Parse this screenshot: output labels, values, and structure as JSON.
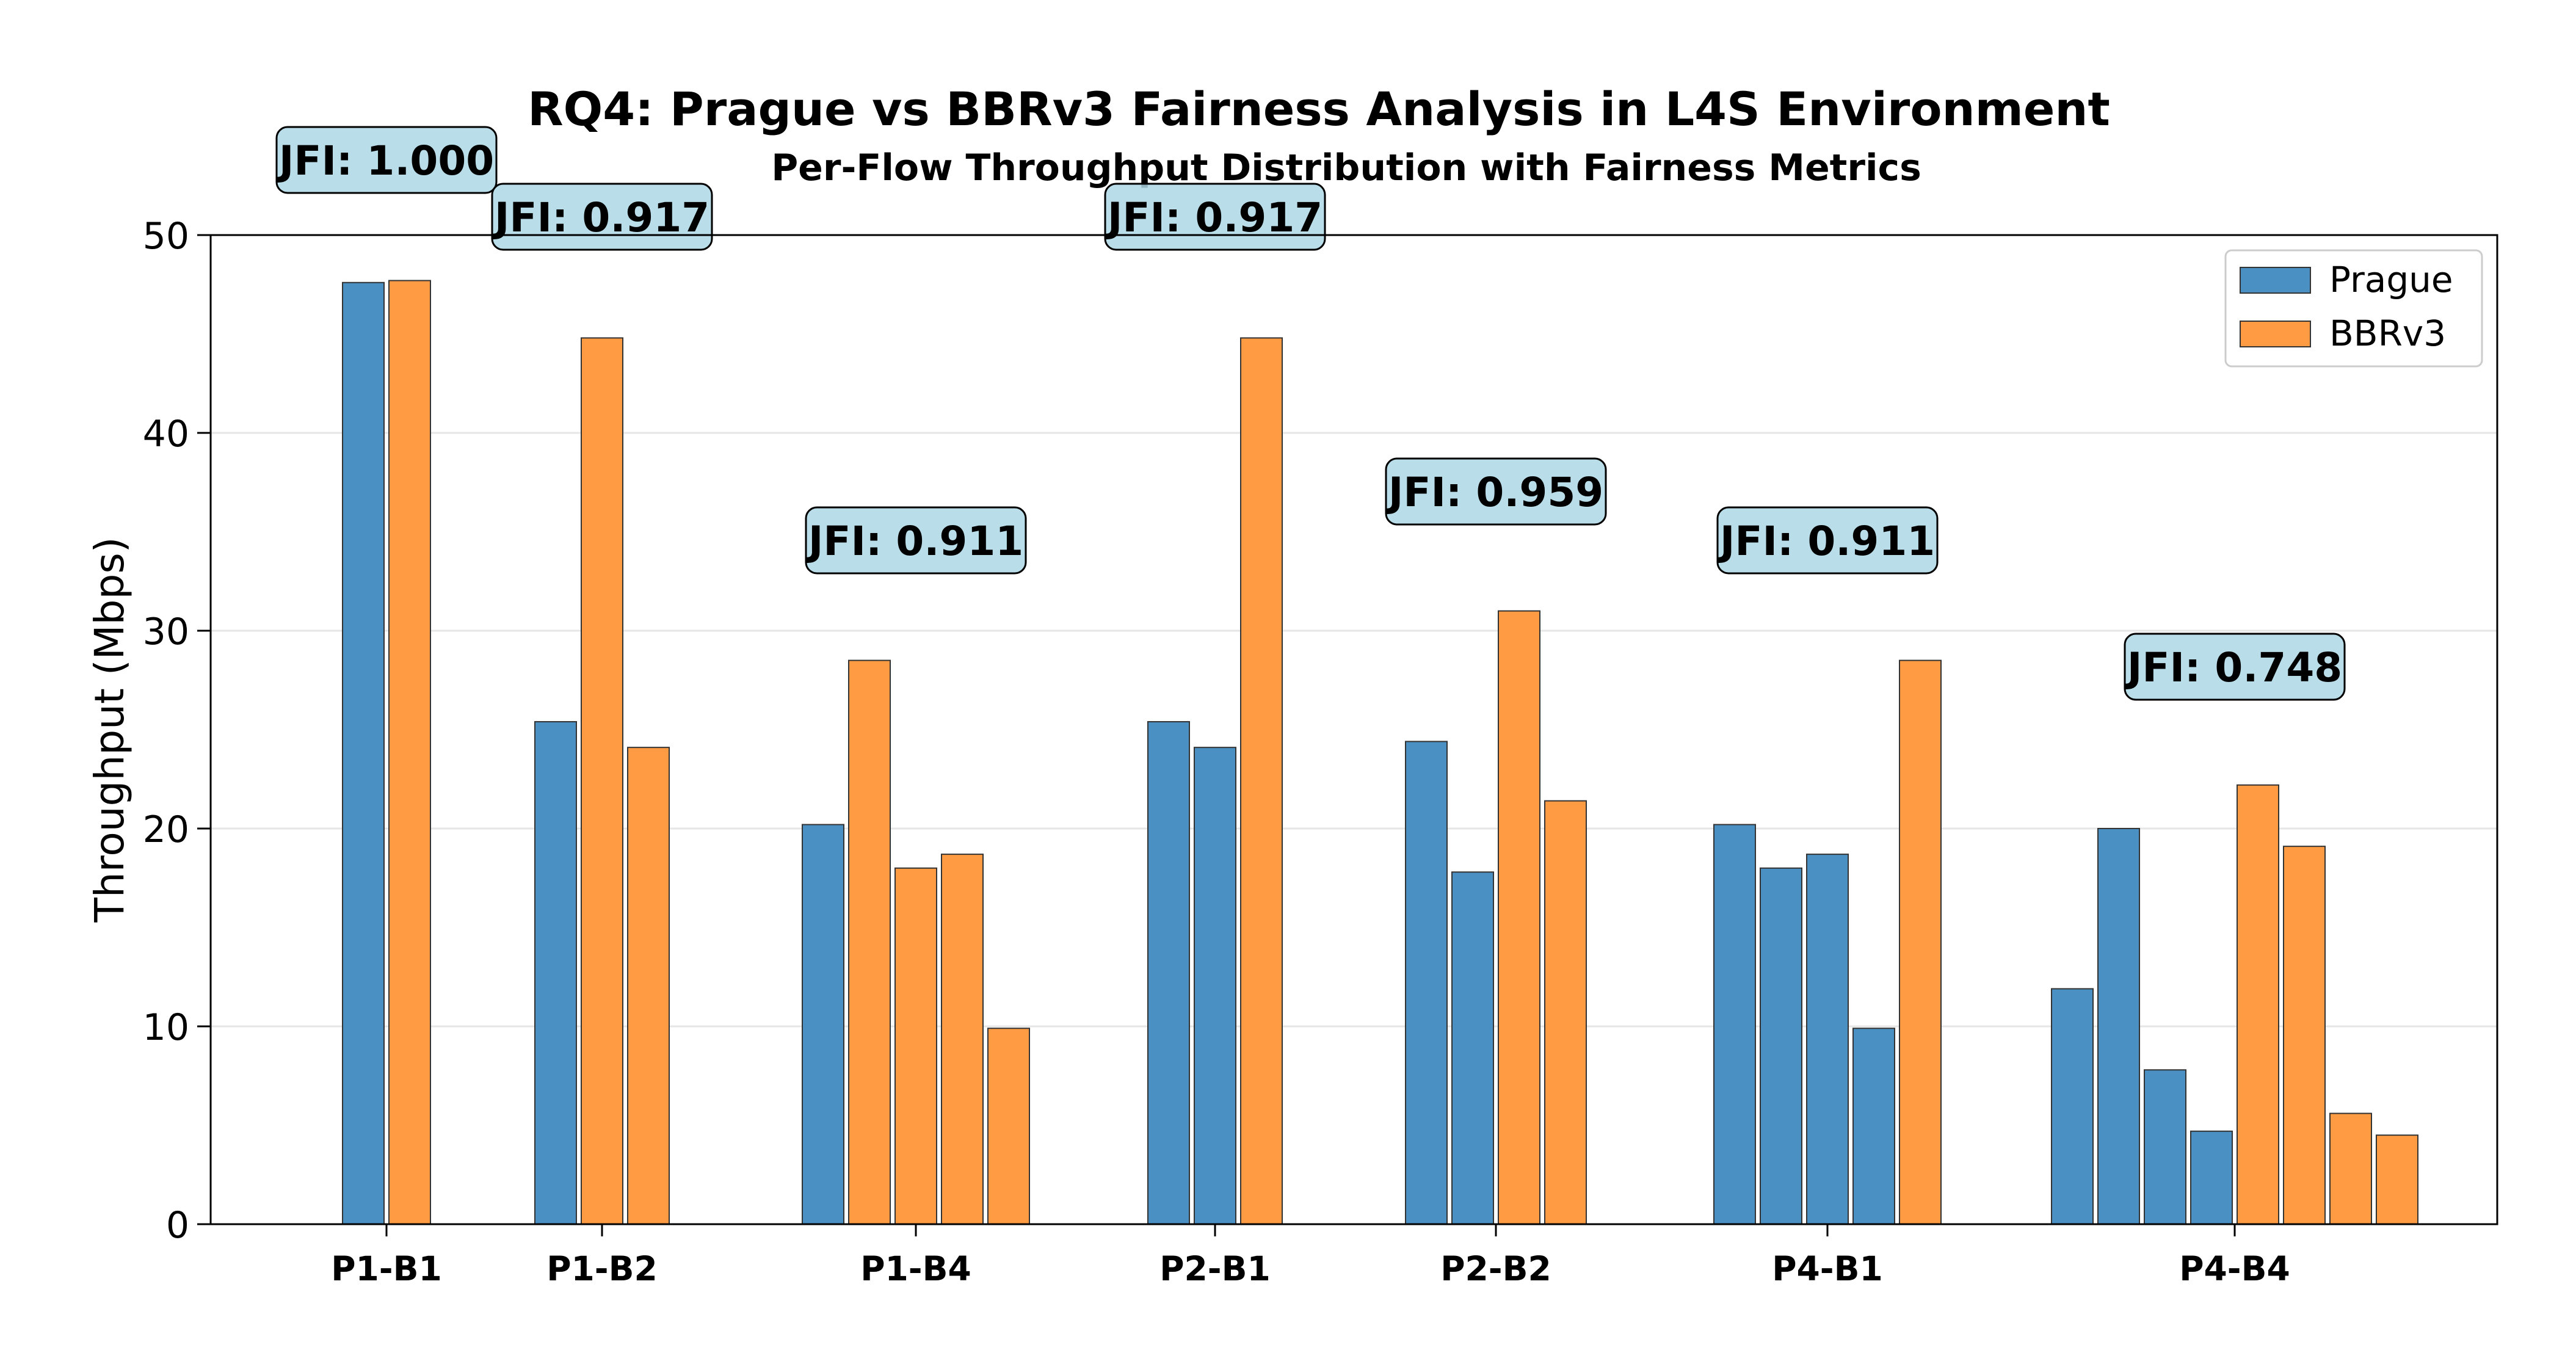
{
  "chart_data": {
    "type": "bar",
    "title": "RQ4: Prague vs BBRv3 Fairness Analysis in L4S Environment",
    "subtitle": "Per-Flow Throughput Distribution with Fairness Metrics",
    "ylabel": "Throughput (Mbps)",
    "xlabel": "",
    "ylim": [
      0,
      50
    ],
    "yticks": [
      0,
      10,
      20,
      30,
      40,
      50
    ],
    "grid": "horizontal",
    "legend_position": "top-right",
    "series_colors": {
      "Prague": "#4a90c2",
      "BBRv3": "#ff9b42"
    },
    "groups": [
      {
        "label": "P1-B1",
        "jfi": "JFI: 1.000",
        "prague": [
          47.6
        ],
        "bbrv3": [
          47.7
        ]
      },
      {
        "label": "P1-B2",
        "jfi": "JFI: 0.917",
        "prague": [
          25.4
        ],
        "bbrv3": [
          44.8,
          24.1
        ]
      },
      {
        "label": "P1-B4",
        "jfi": "JFI: 0.911",
        "prague": [
          20.2
        ],
        "bbrv3": [
          28.5,
          18.0,
          18.7,
          9.9
        ]
      },
      {
        "label": "P2-B1",
        "jfi": "JFI: 0.917",
        "prague": [
          25.4,
          24.1
        ],
        "bbrv3": [
          44.8
        ]
      },
      {
        "label": "P2-B2",
        "jfi": "JFI: 0.959",
        "prague": [
          24.4,
          17.8
        ],
        "bbrv3": [
          31.0,
          21.4
        ]
      },
      {
        "label": "P4-B1",
        "jfi": "JFI: 0.911",
        "prague": [
          20.2,
          18.0,
          18.7,
          9.9
        ],
        "bbrv3": [
          28.5
        ]
      },
      {
        "label": "P4-B4",
        "jfi": "JFI: 0.748",
        "prague": [
          11.9,
          20.0,
          7.8,
          4.7
        ],
        "bbrv3": [
          22.2,
          19.1,
          5.6,
          4.5
        ]
      }
    ],
    "legend": [
      {
        "name": "Prague",
        "color": "#4a90c2"
      },
      {
        "name": "BBRv3",
        "color": "#ff9b42"
      }
    ]
  }
}
